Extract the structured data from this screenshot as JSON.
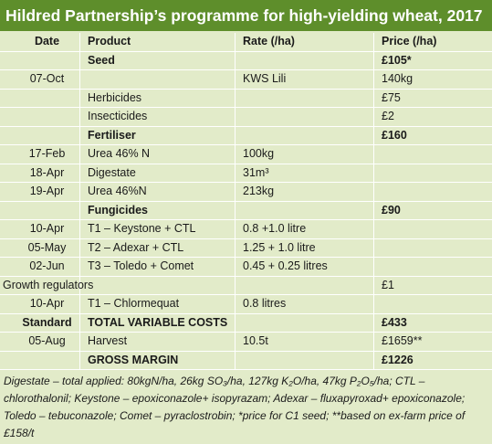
{
  "title": "Hildred Partnership’s programme for high-yielding wheat, 2017",
  "table": {
    "header": {
      "date": "Date",
      "product": "Product",
      "rate": "Rate (/ha)",
      "price": "Price (/ha)"
    },
    "rows": [
      {
        "product": "Seed",
        "price": "£105*",
        "bold": true
      },
      {
        "date": "07-Oct",
        "rate": "KWS Lili",
        "price": "140kg"
      },
      {
        "product": "Herbicides",
        "price": "£75"
      },
      {
        "product": "Insecticides",
        "price": "£2"
      },
      {
        "product": "Fertiliser",
        "price": "£160",
        "bold": true
      },
      {
        "date": "17-Feb",
        "product": "Urea 46% N",
        "rate": "100kg"
      },
      {
        "date": "18-Apr",
        "product": "Digestate",
        "rate": "31m³"
      },
      {
        "date": "19-Apr",
        "product": "Urea 46%N",
        "rate": "213kg"
      },
      {
        "product": "Fungicides",
        "price": "£90",
        "bold": true
      },
      {
        "date": "10-Apr",
        "product": "T1 – Keystone + CTL",
        "rate": "0.8 +1.0 litre"
      },
      {
        "date": "05-May",
        "product": "T2 – Adexar + CTL",
        "rate": "1.25 + 1.0 litre"
      },
      {
        "date": "02-Jun",
        "product": "T3 – Toledo + Comet",
        "rate": "0.45 + 0.25 litres"
      },
      {
        "date": "Growth regulators",
        "price": "£1",
        "wide": true
      },
      {
        "date": "10-Apr",
        "product": "T1 – Chlormequat",
        "rate": "0.8 litres"
      },
      {
        "date": "Standard",
        "product": "TOTAL VARIABLE COSTS",
        "price": "£433",
        "bold": true
      },
      {
        "date": "05-Aug",
        "product": "Harvest",
        "rate": "10.5t",
        "price": "£1659**"
      },
      {
        "product": "GROSS MARGIN",
        "price": "£1226",
        "bold": true
      }
    ]
  },
  "notes": "Digestate – total applied: 80kgN/ha, 26kg SO₃/ha, 127kg K₂O/ha, 47kg P₂O₅/ha; CTL – chlorothalonil; Keystone – epoxiconazole+ isopyrazam; Adexar – fluxapyroxad+ epoxiconazole; Toledo – tebuconazole; Comet – pyraclostrobin; *price for C1 seed; **based on ex-farm price of £158/t"
}
